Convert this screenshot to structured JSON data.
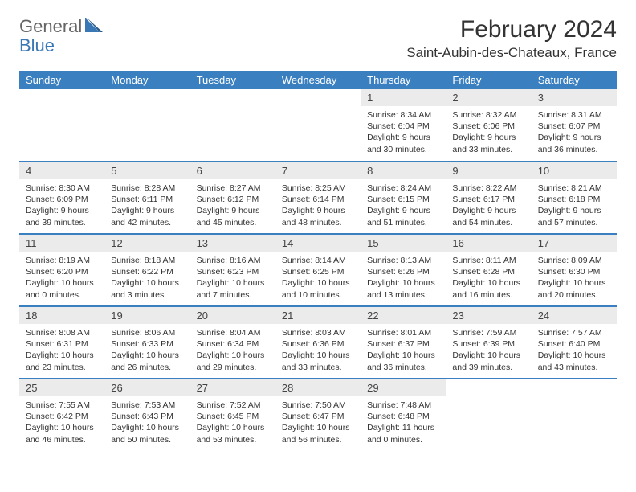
{
  "brand": {
    "part1": "General",
    "part2": "Blue"
  },
  "title": "February 2024",
  "location": "Saint-Aubin-des-Chateaux, France",
  "colors": {
    "header_bg": "#3a7fbf",
    "header_text": "#ffffff",
    "row_divider": "#3a7fbf",
    "daynum_bg": "#ebebeb",
    "body_text": "#333333",
    "logo_blue": "#3a78b5",
    "page_bg": "#ffffff"
  },
  "weekdays": [
    "Sunday",
    "Monday",
    "Tuesday",
    "Wednesday",
    "Thursday",
    "Friday",
    "Saturday"
  ],
  "weeks": [
    [
      null,
      null,
      null,
      null,
      {
        "n": "1",
        "sr": "Sunrise: 8:34 AM",
        "ss": "Sunset: 6:04 PM",
        "dl1": "Daylight: 9 hours",
        "dl2": "and 30 minutes."
      },
      {
        "n": "2",
        "sr": "Sunrise: 8:32 AM",
        "ss": "Sunset: 6:06 PM",
        "dl1": "Daylight: 9 hours",
        "dl2": "and 33 minutes."
      },
      {
        "n": "3",
        "sr": "Sunrise: 8:31 AM",
        "ss": "Sunset: 6:07 PM",
        "dl1": "Daylight: 9 hours",
        "dl2": "and 36 minutes."
      }
    ],
    [
      {
        "n": "4",
        "sr": "Sunrise: 8:30 AM",
        "ss": "Sunset: 6:09 PM",
        "dl1": "Daylight: 9 hours",
        "dl2": "and 39 minutes."
      },
      {
        "n": "5",
        "sr": "Sunrise: 8:28 AM",
        "ss": "Sunset: 6:11 PM",
        "dl1": "Daylight: 9 hours",
        "dl2": "and 42 minutes."
      },
      {
        "n": "6",
        "sr": "Sunrise: 8:27 AM",
        "ss": "Sunset: 6:12 PM",
        "dl1": "Daylight: 9 hours",
        "dl2": "and 45 minutes."
      },
      {
        "n": "7",
        "sr": "Sunrise: 8:25 AM",
        "ss": "Sunset: 6:14 PM",
        "dl1": "Daylight: 9 hours",
        "dl2": "and 48 minutes."
      },
      {
        "n": "8",
        "sr": "Sunrise: 8:24 AM",
        "ss": "Sunset: 6:15 PM",
        "dl1": "Daylight: 9 hours",
        "dl2": "and 51 minutes."
      },
      {
        "n": "9",
        "sr": "Sunrise: 8:22 AM",
        "ss": "Sunset: 6:17 PM",
        "dl1": "Daylight: 9 hours",
        "dl2": "and 54 minutes."
      },
      {
        "n": "10",
        "sr": "Sunrise: 8:21 AM",
        "ss": "Sunset: 6:18 PM",
        "dl1": "Daylight: 9 hours",
        "dl2": "and 57 minutes."
      }
    ],
    [
      {
        "n": "11",
        "sr": "Sunrise: 8:19 AM",
        "ss": "Sunset: 6:20 PM",
        "dl1": "Daylight: 10 hours",
        "dl2": "and 0 minutes."
      },
      {
        "n": "12",
        "sr": "Sunrise: 8:18 AM",
        "ss": "Sunset: 6:22 PM",
        "dl1": "Daylight: 10 hours",
        "dl2": "and 3 minutes."
      },
      {
        "n": "13",
        "sr": "Sunrise: 8:16 AM",
        "ss": "Sunset: 6:23 PM",
        "dl1": "Daylight: 10 hours",
        "dl2": "and 7 minutes."
      },
      {
        "n": "14",
        "sr": "Sunrise: 8:14 AM",
        "ss": "Sunset: 6:25 PM",
        "dl1": "Daylight: 10 hours",
        "dl2": "and 10 minutes."
      },
      {
        "n": "15",
        "sr": "Sunrise: 8:13 AM",
        "ss": "Sunset: 6:26 PM",
        "dl1": "Daylight: 10 hours",
        "dl2": "and 13 minutes."
      },
      {
        "n": "16",
        "sr": "Sunrise: 8:11 AM",
        "ss": "Sunset: 6:28 PM",
        "dl1": "Daylight: 10 hours",
        "dl2": "and 16 minutes."
      },
      {
        "n": "17",
        "sr": "Sunrise: 8:09 AM",
        "ss": "Sunset: 6:30 PM",
        "dl1": "Daylight: 10 hours",
        "dl2": "and 20 minutes."
      }
    ],
    [
      {
        "n": "18",
        "sr": "Sunrise: 8:08 AM",
        "ss": "Sunset: 6:31 PM",
        "dl1": "Daylight: 10 hours",
        "dl2": "and 23 minutes."
      },
      {
        "n": "19",
        "sr": "Sunrise: 8:06 AM",
        "ss": "Sunset: 6:33 PM",
        "dl1": "Daylight: 10 hours",
        "dl2": "and 26 minutes."
      },
      {
        "n": "20",
        "sr": "Sunrise: 8:04 AM",
        "ss": "Sunset: 6:34 PM",
        "dl1": "Daylight: 10 hours",
        "dl2": "and 29 minutes."
      },
      {
        "n": "21",
        "sr": "Sunrise: 8:03 AM",
        "ss": "Sunset: 6:36 PM",
        "dl1": "Daylight: 10 hours",
        "dl2": "and 33 minutes."
      },
      {
        "n": "22",
        "sr": "Sunrise: 8:01 AM",
        "ss": "Sunset: 6:37 PM",
        "dl1": "Daylight: 10 hours",
        "dl2": "and 36 minutes."
      },
      {
        "n": "23",
        "sr": "Sunrise: 7:59 AM",
        "ss": "Sunset: 6:39 PM",
        "dl1": "Daylight: 10 hours",
        "dl2": "and 39 minutes."
      },
      {
        "n": "24",
        "sr": "Sunrise: 7:57 AM",
        "ss": "Sunset: 6:40 PM",
        "dl1": "Daylight: 10 hours",
        "dl2": "and 43 minutes."
      }
    ],
    [
      {
        "n": "25",
        "sr": "Sunrise: 7:55 AM",
        "ss": "Sunset: 6:42 PM",
        "dl1": "Daylight: 10 hours",
        "dl2": "and 46 minutes."
      },
      {
        "n": "26",
        "sr": "Sunrise: 7:53 AM",
        "ss": "Sunset: 6:43 PM",
        "dl1": "Daylight: 10 hours",
        "dl2": "and 50 minutes."
      },
      {
        "n": "27",
        "sr": "Sunrise: 7:52 AM",
        "ss": "Sunset: 6:45 PM",
        "dl1": "Daylight: 10 hours",
        "dl2": "and 53 minutes."
      },
      {
        "n": "28",
        "sr": "Sunrise: 7:50 AM",
        "ss": "Sunset: 6:47 PM",
        "dl1": "Daylight: 10 hours",
        "dl2": "and 56 minutes."
      },
      {
        "n": "29",
        "sr": "Sunrise: 7:48 AM",
        "ss": "Sunset: 6:48 PM",
        "dl1": "Daylight: 11 hours",
        "dl2": "and 0 minutes."
      },
      null,
      null
    ]
  ]
}
